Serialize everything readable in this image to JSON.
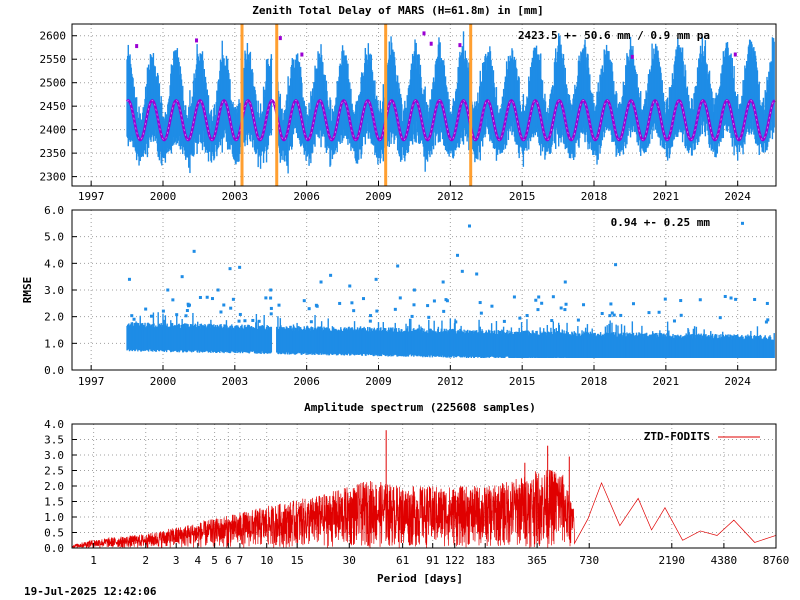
{
  "timestamp": "19-Jul-2025 12:42:06",
  "chart_data": [
    {
      "type": "scatter",
      "title": "Zenith Total Delay of MARS (H=61.8m) in [mm]",
      "annotation": "2423.5 +-  50.6 mm /  0.9 mm pa",
      "xlim": [
        1996.2,
        2025.6
      ],
      "ylim": [
        2280,
        2625
      ],
      "xticks": [
        1997,
        2000,
        2003,
        2006,
        2009,
        2012,
        2015,
        2018,
        2021,
        2024
      ],
      "yticks": [
        2300,
        2350,
        2400,
        2450,
        2500,
        2550,
        2600
      ],
      "grid": true,
      "data_start": 1998.5,
      "data_end": 2025.55,
      "data_gap": [
        2004.55,
        2004.75
      ],
      "series": [
        {
          "role": "observations",
          "color": "#1e8ce6",
          "mean": 2423.5,
          "std": 50.6
        },
        {
          "role": "fit",
          "color": "#9b00d3",
          "mean": 2420,
          "amplitude": 42,
          "trend_per_year": 0.9
        },
        {
          "role": "outliers",
          "color": "#9b00d3",
          "points": [
            [
              1998.9,
              2578
            ],
            [
              2001.4,
              2590
            ],
            [
              2004.9,
              2595
            ],
            [
              2005.8,
              2560
            ],
            [
              2010.9,
              2605
            ],
            [
              2011.2,
              2583
            ],
            [
              2012.4,
              2580
            ],
            [
              2019.6,
              2555
            ],
            [
              2023.9,
              2560
            ]
          ]
        }
      ],
      "vertical_markers": {
        "color": "#ff9f30",
        "x": [
          2003.3,
          2004.75,
          2009.3,
          2012.85
        ]
      }
    },
    {
      "type": "scatter",
      "ylabel": "RMSE",
      "annotation": "0.94 +-  0.25 mm",
      "xlim": [
        1996.2,
        2025.6
      ],
      "ylim": [
        0,
        6
      ],
      "xticks": [
        1997,
        2000,
        2003,
        2006,
        2009,
        2012,
        2015,
        2018,
        2021,
        2024
      ],
      "yticks": [
        0.0,
        1.0,
        2.0,
        3.0,
        4.0,
        5.0,
        6.0
      ],
      "grid": true,
      "color": "#1e8ce6",
      "mean": 0.94,
      "std": 0.25,
      "outliers": [
        [
          1998.6,
          3.4
        ],
        [
          2000.2,
          3.0
        ],
        [
          2000.8,
          3.5
        ],
        [
          2001.3,
          4.45
        ],
        [
          2002.3,
          3.0
        ],
        [
          2002.8,
          3.8
        ],
        [
          2003.2,
          3.85
        ],
        [
          2004.5,
          3.0
        ],
        [
          2005.9,
          2.6
        ],
        [
          2006.6,
          3.3
        ],
        [
          2007.0,
          3.55
        ],
        [
          2007.8,
          3.15
        ],
        [
          2008.9,
          3.4
        ],
        [
          2009.8,
          3.9
        ],
        [
          2010.5,
          3.0
        ],
        [
          2011.7,
          3.3
        ],
        [
          2012.3,
          4.3
        ],
        [
          2012.5,
          3.7
        ],
        [
          2012.8,
          5.4
        ],
        [
          2013.1,
          3.6
        ],
        [
          2016.8,
          3.3
        ],
        [
          2018.9,
          3.95
        ],
        [
          2024.2,
          5.5
        ],
        [
          2025.2,
          1.8
        ]
      ]
    },
    {
      "type": "line",
      "title": "Amplitude spectrum (225608 samples)",
      "xlabel": "Period [days]",
      "xscale": "log",
      "xlim": [
        0.75,
        8760
      ],
      "ylim": [
        0,
        4.0
      ],
      "xticks": [
        "1",
        "2",
        "3",
        "4",
        "5",
        "6",
        "7",
        "10",
        "15",
        "30",
        "61",
        "91",
        "122",
        "183",
        "365",
        "730",
        "2190",
        "4380",
        "8760"
      ],
      "xtick_values": [
        1,
        2,
        3,
        4,
        5,
        6,
        7,
        10,
        15,
        30,
        61,
        91,
        122,
        183,
        365,
        730,
        2190,
        4380,
        8760
      ],
      "yticks": [
        0.0,
        0.5,
        1.0,
        1.5,
        2.0,
        2.5,
        3.0,
        3.5,
        4.0
      ],
      "grid": true,
      "legend": {
        "label": "ZTD-FODITS",
        "position": "top-right",
        "color": "#e00000"
      },
      "series": [
        {
          "name": "ZTD-FODITS",
          "color": "#e00000",
          "envelope": [
            [
              0.75,
              0.1
            ],
            [
              1,
              0.28
            ],
            [
              2,
              0.45
            ],
            [
              5,
              0.95
            ],
            [
              10,
              1.35
            ],
            [
              20,
              1.7
            ],
            [
              40,
              2.2
            ],
            [
              61,
              2.0
            ],
            [
              100,
              2.0
            ],
            [
              200,
              2.0
            ],
            [
              365,
              2.5
            ],
            [
              500,
              2.6
            ],
            [
              600,
              1.2
            ]
          ],
          "peaks": [
            [
              49,
              3.8
            ],
            [
              310,
              2.75
            ],
            [
              420,
              3.3
            ],
            [
              560,
              2.95
            ],
            [
              860,
              2.1
            ],
            [
              1400,
              1.6
            ],
            [
              2000,
              1.3
            ],
            [
              3200,
              0.55
            ],
            [
              5000,
              0.9
            ],
            [
              8700,
              0.4
            ]
          ]
        }
      ]
    }
  ]
}
